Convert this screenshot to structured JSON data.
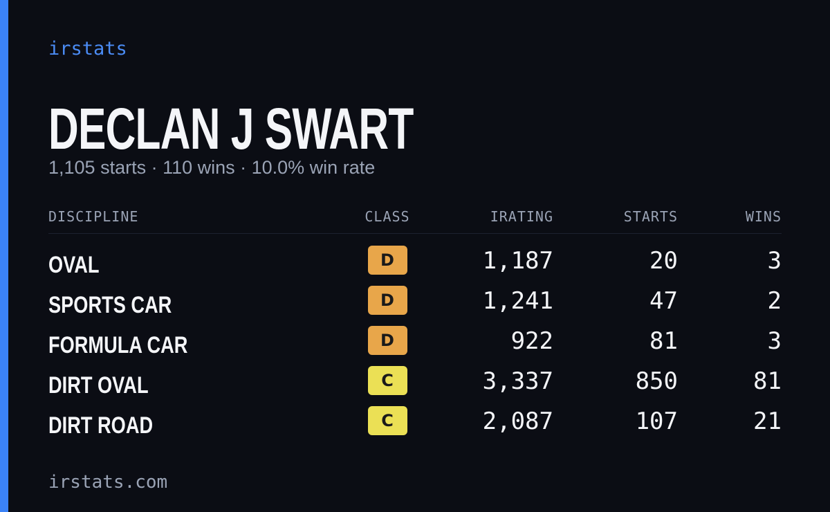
{
  "brand": "irstats",
  "driver": {
    "name": "DECLAN J SWART",
    "summary": "1,105 starts · 110 wins · 10.0% win rate"
  },
  "table": {
    "headers": [
      "DISCIPLINE",
      "CLASS",
      "IRATING",
      "STARTS",
      "WINS"
    ],
    "rows": [
      [
        "OVAL",
        "D",
        "1,187",
        "20",
        "3"
      ],
      [
        "SPORTS CAR",
        "D",
        "1,241",
        "47",
        "2"
      ],
      [
        "FORMULA CAR",
        "D",
        "922",
        "81",
        "3"
      ],
      [
        "DIRT OVAL",
        "C",
        "3,337",
        "850",
        "81"
      ],
      [
        "DIRT ROAD",
        "C",
        "2,087",
        "107",
        "21"
      ]
    ],
    "badge_colors": {
      "D": "#e8a64a",
      "C": "#ebe055"
    }
  },
  "footer": "irstats.com"
}
